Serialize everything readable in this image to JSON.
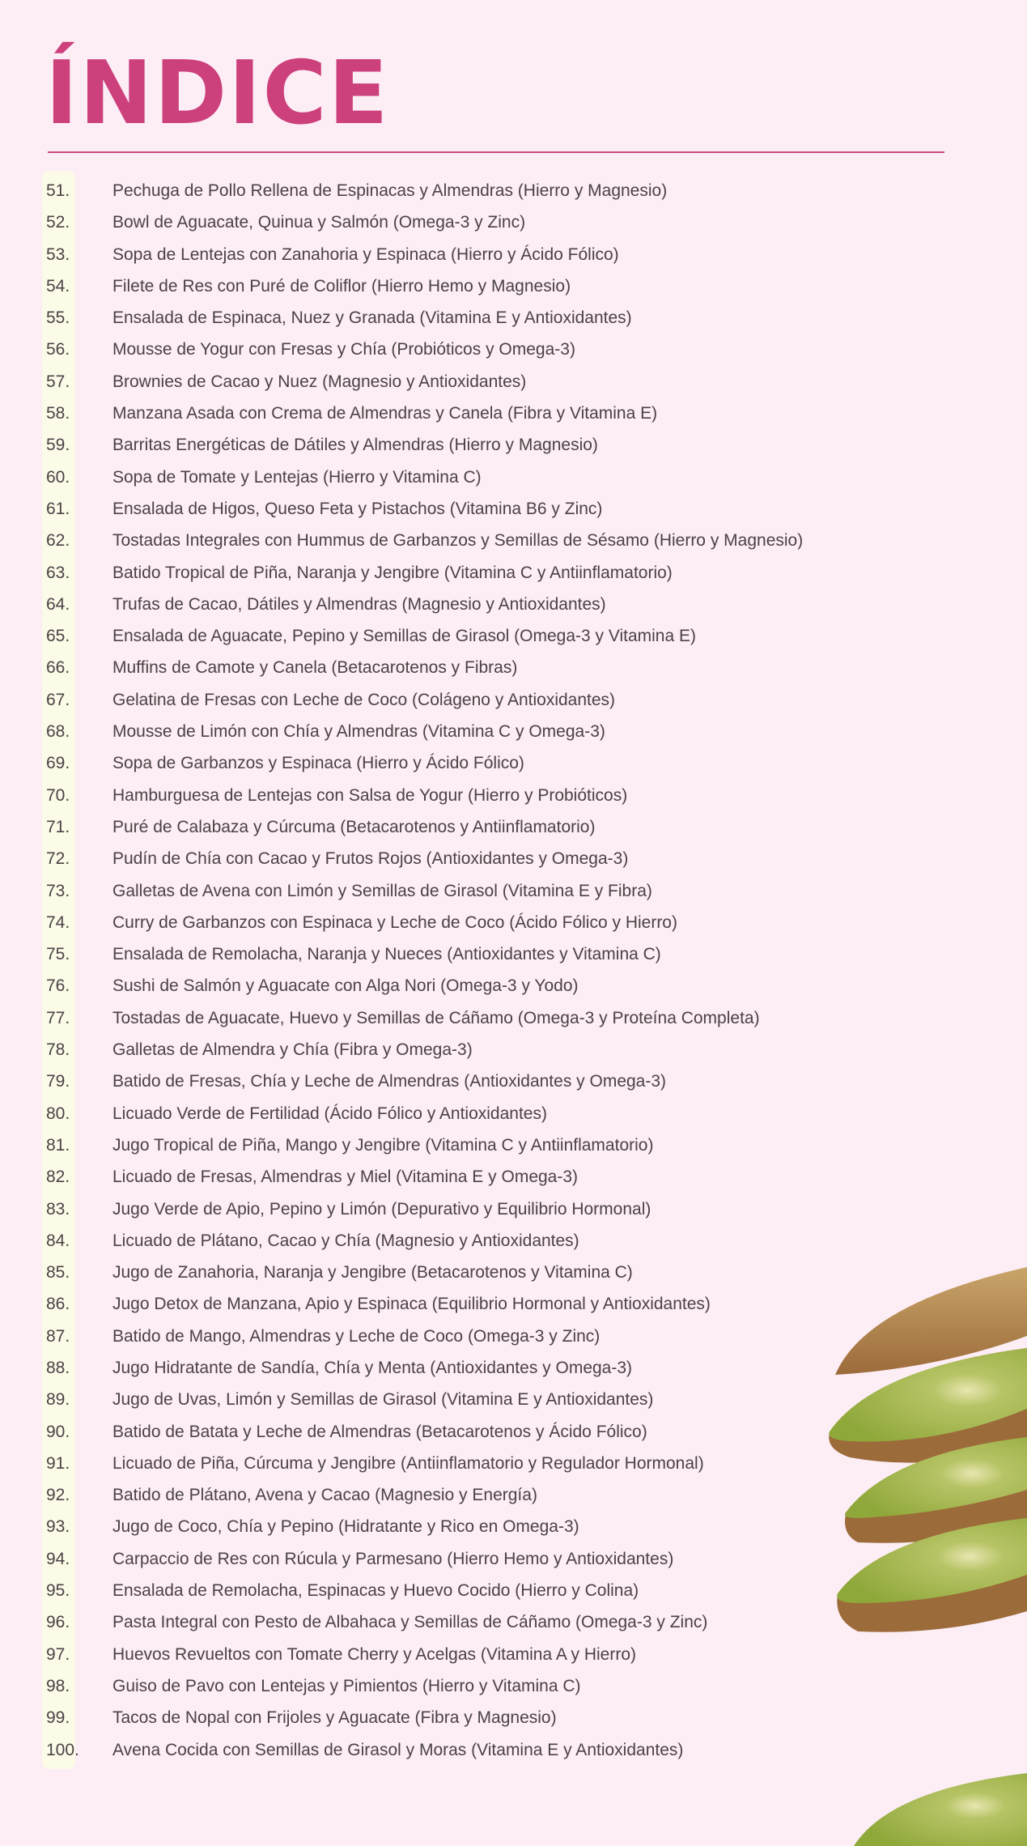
{
  "title": "ÍNDICE",
  "colors": {
    "accent": "#cc407c",
    "background": "#fdedf5",
    "number_column": "#fbfbe8",
    "text": "#4a4346"
  },
  "decoration": "kiwi-slices-image",
  "items": [
    {
      "num": "51.",
      "text": "Pechuga de Pollo Rellena de Espinacas y Almendras (Hierro y Magnesio)"
    },
    {
      "num": "52.",
      "text": "Bowl de Aguacate, Quinua y Salmón (Omega-3 y Zinc)"
    },
    {
      "num": "53.",
      "text": "Sopa de Lentejas con Zanahoria y Espinaca (Hierro y Ácido Fólico)"
    },
    {
      "num": "54.",
      "text": "Filete de Res con Puré de Coliflor (Hierro Hemo y Magnesio)"
    },
    {
      "num": "55.",
      "text": "Ensalada de Espinaca, Nuez y Granada (Vitamina E y Antioxidantes)"
    },
    {
      "num": "56.",
      "text": "Mousse de Yogur con Fresas y Chía (Probióticos y Omega-3)"
    },
    {
      "num": "57.",
      "text": "Brownies de Cacao y Nuez (Magnesio y Antioxidantes)"
    },
    {
      "num": "58.",
      "text": "Manzana Asada con Crema de Almendras y Canela (Fibra y Vitamina E)"
    },
    {
      "num": "59.",
      "text": "Barritas Energéticas de Dátiles y Almendras (Hierro y Magnesio)"
    },
    {
      "num": "60.",
      "text": "Sopa de Tomate y Lentejas (Hierro y Vitamina C)"
    },
    {
      "num": "61.",
      "text": "Ensalada de Higos, Queso Feta y Pistachos (Vitamina B6 y Zinc)"
    },
    {
      "num": "62.",
      "text": "Tostadas Integrales con Hummus de Garbanzos y Semillas de Sésamo (Hierro y Magnesio)"
    },
    {
      "num": "63.",
      "text": "Batido Tropical de Piña, Naranja y Jengibre (Vitamina C y Antiinflamatorio)"
    },
    {
      "num": "64.",
      "text": "Trufas de Cacao, Dátiles y Almendras (Magnesio y Antioxidantes)"
    },
    {
      "num": "65.",
      "text": "Ensalada de Aguacate, Pepino y Semillas de Girasol (Omega-3 y Vitamina E)"
    },
    {
      "num": "66.",
      "text": "Muffins de Camote y Canela (Betacarotenos y Fibras)"
    },
    {
      "num": "67.",
      "text": "Gelatina de Fresas con Leche de Coco (Colágeno y Antioxidantes)"
    },
    {
      "num": "68.",
      "text": "Mousse de Limón con Chía y Almendras (Vitamina C y Omega-3)"
    },
    {
      "num": "69.",
      "text": "Sopa de Garbanzos y Espinaca (Hierro y Ácido Fólico)"
    },
    {
      "num": "70.",
      "text": "Hamburguesa de Lentejas con Salsa de Yogur (Hierro y Probióticos)"
    },
    {
      "num": "71.",
      "text": "Puré de Calabaza y Cúrcuma (Betacarotenos y Antiinflamatorio)"
    },
    {
      "num": "72.",
      "text": "Pudín de Chía con Cacao y Frutos Rojos (Antioxidantes y Omega-3)"
    },
    {
      "num": "73.",
      "text": "Galletas de Avena con Limón y Semillas de Girasol (Vitamina E y Fibra)"
    },
    {
      "num": "74.",
      "text": "Curry de Garbanzos con Espinaca y Leche de Coco (Ácido Fólico y Hierro)"
    },
    {
      "num": "75.",
      "text": "Ensalada de Remolacha, Naranja y Nueces (Antioxidantes y Vitamina C)"
    },
    {
      "num": "76.",
      "text": "Sushi de Salmón y Aguacate con Alga Nori (Omega-3 y Yodo)"
    },
    {
      "num": "77.",
      "text": "Tostadas de Aguacate, Huevo y Semillas de Cáñamo (Omega-3 y Proteína Completa)"
    },
    {
      "num": "78.",
      "text": "Galletas de Almendra y Chía (Fibra y Omega-3)"
    },
    {
      "num": "79.",
      "text": "Batido de Fresas, Chía y Leche de Almendras (Antioxidantes y Omega-3)"
    },
    {
      "num": "80.",
      "text": "Licuado Verde de Fertilidad (Ácido Fólico y Antioxidantes)"
    },
    {
      "num": "81.",
      "text": "Jugo Tropical de Piña, Mango y Jengibre (Vitamina C y Antiinflamatorio)"
    },
    {
      "num": "82.",
      "text": "Licuado de Fresas, Almendras y Miel (Vitamina E y Omega-3)"
    },
    {
      "num": "83.",
      "text": "Jugo Verde de Apio, Pepino y Limón (Depurativo y Equilibrio Hormonal)"
    },
    {
      "num": "84.",
      "text": "Licuado de Plátano, Cacao y Chía (Magnesio y Antioxidantes)"
    },
    {
      "num": "85.",
      "text": "Jugo de Zanahoria, Naranja y Jengibre (Betacarotenos y Vitamina C)"
    },
    {
      "num": "86.",
      "text": "Jugo Detox de Manzana, Apio y Espinaca (Equilibrio Hormonal y Antioxidantes)"
    },
    {
      "num": "87.",
      "text": "Batido de Mango, Almendras y Leche de Coco (Omega-3 y Zinc)"
    },
    {
      "num": "88.",
      "text": "Jugo Hidratante de Sandía, Chía y Menta (Antioxidantes y Omega-3)"
    },
    {
      "num": "89.",
      "text": "Jugo de Uvas, Limón y Semillas de Girasol (Vitamina E y Antioxidantes)"
    },
    {
      "num": "90.",
      "text": "Batido de Batata y Leche de Almendras (Betacarotenos y Ácido Fólico)"
    },
    {
      "num": "91.",
      "text": "Licuado de Piña, Cúrcuma y Jengibre (Antiinflamatorio y Regulador Hormonal)"
    },
    {
      "num": "92.",
      "text": "Batido de Plátano, Avena y Cacao (Magnesio y Energía)"
    },
    {
      "num": "93.",
      "text": "Jugo de Coco, Chía y Pepino (Hidratante y Rico en Omega-3)"
    },
    {
      "num": "94.",
      "text": "Carpaccio de Res con Rúcula y Parmesano (Hierro Hemo y Antioxidantes)"
    },
    {
      "num": "95.",
      "text": "Ensalada de Remolacha, Espinacas y Huevo Cocido (Hierro y Colina)"
    },
    {
      "num": "96.",
      "text": "Pasta Integral con Pesto de Albahaca y Semillas de Cáñamo (Omega-3 y Zinc)"
    },
    {
      "num": "97.",
      "text": "Huevos Revueltos con Tomate Cherry y Acelgas (Vitamina A y Hierro)"
    },
    {
      "num": "98.",
      "text": "Guiso de Pavo con Lentejas y Pimientos (Hierro y Vitamina C)"
    },
    {
      "num": "99.",
      "text": "Tacos de Nopal con Frijoles y Aguacate (Fibra y Magnesio)"
    },
    {
      "num": "100.",
      "text": "Avena Cocida con Semillas de Girasol y Moras (Vitamina E y Antioxidantes)"
    }
  ]
}
